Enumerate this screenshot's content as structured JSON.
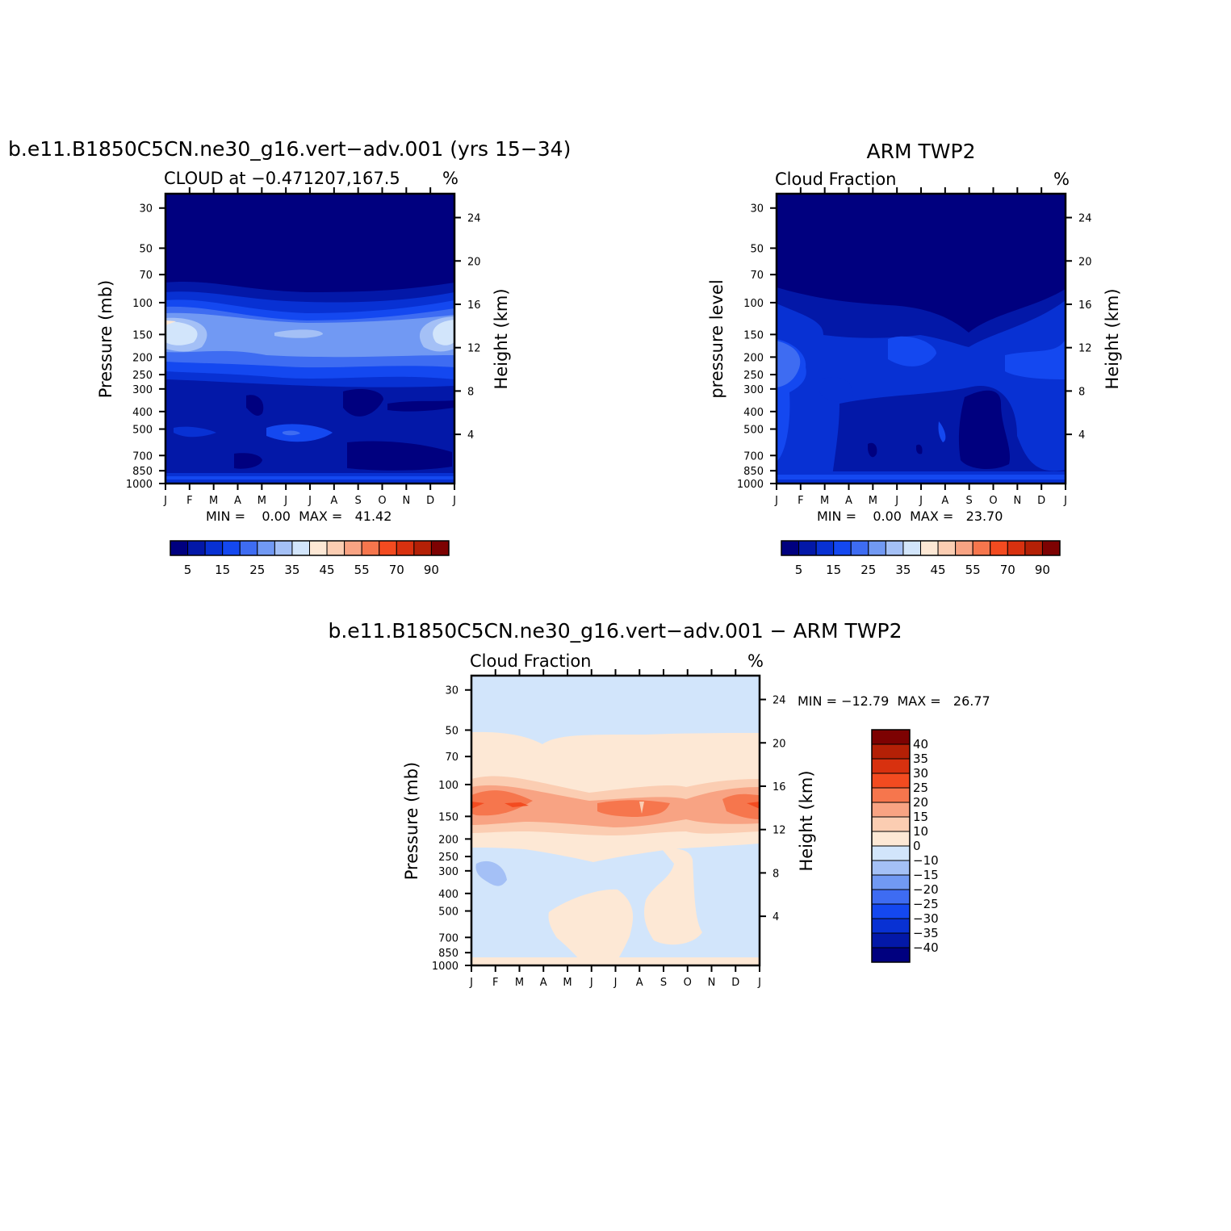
{
  "figure": {
    "panels": [
      {
        "id": "model",
        "title": "b.e11.B1850C5CN.ne30_g16.vert−adv.001 (yrs 15−34)",
        "subtitle_left": "CLOUD at −0.471207,167.5",
        "subtitle_right": "%",
        "ylabel_left": "Pressure (mb)",
        "ylabel_right": "Height (km)",
        "stats": "MIN =    0.00  MAX =   41.42"
      },
      {
        "id": "obs",
        "title": "ARM TWP2",
        "subtitle_left": "Cloud Fraction",
        "subtitle_right": "%",
        "ylabel_left": "pressure level",
        "ylabel_right": "Height (km)",
        "stats": "MIN =    0.00  MAX =   23.70"
      },
      {
        "id": "diff",
        "title": "b.e11.B1850C5CN.ne30_g16.vert−adv.001 − ARM TWP2",
        "subtitle_left": "Cloud Fraction",
        "subtitle_right": "%",
        "ylabel_left": "Pressure (mb)",
        "ylabel_right": "Height (km)",
        "stats": "MIN = −12.79  MAX =   26.77"
      }
    ],
    "colors": {
      "abs_scale": [
        "#00007f",
        "#0318a8",
        "#0831d3",
        "#1448f0",
        "#3e6cf2",
        "#7199f3",
        "#a4c0f6",
        "#d2e5fb",
        "#fde8d5",
        "#fbcdb2",
        "#f8a383",
        "#f6764d",
        "#f34b20",
        "#d8310f",
        "#b42006",
        "#7d0202"
      ],
      "diff_scale": [
        "#00007f",
        "#0318a8",
        "#0831d3",
        "#1448f0",
        "#3e6cf2",
        "#7199f3",
        "#a4c0f6",
        "#d2e5fb",
        "#fde8d5",
        "#fbcdb2",
        "#f8a383",
        "#f6764d",
        "#f34b20",
        "#d8310f",
        "#b42006",
        "#7d0202"
      ]
    }
  },
  "chart_data": [
    {
      "type": "heatmap",
      "title": "b.e11.B1850C5CN.ne30_g16.vert−adv.001 (yrs 15−34)",
      "subtitle": "CLOUD at −0.471207,167.5",
      "units": "%",
      "x_ticks": [
        "J",
        "F",
        "M",
        "A",
        "M",
        "J",
        "J",
        "A",
        "S",
        "O",
        "N",
        "D",
        "J"
      ],
      "y_ticks_left": [
        "30",
        "50",
        "70",
        "100",
        "150",
        "200",
        "250",
        "300",
        "400",
        "500",
        "700",
        "850",
        "1000"
      ],
      "y_ticks_right": [
        "24",
        "20",
        "16",
        "12",
        "8",
        "4"
      ],
      "ylabel": "Pressure (mb)",
      "ylabel_right": "Height (km)",
      "contour_levels": [
        0,
        5,
        10,
        15,
        20,
        25,
        30,
        35,
        40,
        45,
        50,
        55,
        60,
        70,
        80,
        90
      ],
      "colorbar_labels": [
        "5",
        "15",
        "25",
        "35",
        "45",
        "55",
        "70",
        "90"
      ],
      "min": 0.0,
      "max": 41.42,
      "profiles": {
        "30": 0,
        "50": 0,
        "70": 1,
        "100": 12,
        "150": 32,
        "200": 20,
        "250": 12,
        "300": 8,
        "400": 7,
        "500": 9,
        "700": 6,
        "850": 7,
        "1000": 20
      }
    },
    {
      "type": "heatmap",
      "title": "ARM TWP2",
      "subtitle": "Cloud Fraction",
      "units": "%",
      "x_ticks": [
        "J",
        "F",
        "M",
        "A",
        "M",
        "J",
        "J",
        "A",
        "S",
        "O",
        "N",
        "D",
        "J"
      ],
      "y_ticks_left": [
        "30",
        "50",
        "70",
        "100",
        "150",
        "200",
        "250",
        "300",
        "400",
        "500",
        "700",
        "850",
        "1000"
      ],
      "y_ticks_right": [
        "24",
        "20",
        "16",
        "12",
        "8",
        "4"
      ],
      "ylabel": "pressure level",
      "ylabel_right": "Height (km)",
      "contour_levels": [
        0,
        5,
        10,
        15,
        20,
        25,
        30,
        35,
        40,
        45,
        50,
        55,
        60,
        70,
        80,
        90
      ],
      "colorbar_labels": [
        "5",
        "15",
        "25",
        "35",
        "45",
        "55",
        "70",
        "90"
      ],
      "min": 0.0,
      "max": 23.7,
      "profiles": {
        "30": 0,
        "50": 0,
        "70": 0,
        "100": 2,
        "150": 9,
        "200": 14,
        "250": 13,
        "300": 10,
        "400": 9,
        "500": 10,
        "700": 6,
        "850": 9,
        "1000": 12
      }
    },
    {
      "type": "heatmap",
      "title": "b.e11.B1850C5CN.ne30_g16.vert−adv.001 − ARM TWP2",
      "subtitle": "Cloud Fraction",
      "units": "%",
      "x_ticks": [
        "J",
        "F",
        "M",
        "A",
        "M",
        "J",
        "J",
        "A",
        "S",
        "O",
        "N",
        "D",
        "J"
      ],
      "y_ticks_left": [
        "30",
        "50",
        "70",
        "100",
        "150",
        "200",
        "250",
        "300",
        "400",
        "500",
        "700",
        "850",
        "1000"
      ],
      "y_ticks_right": [
        "24",
        "20",
        "16",
        "12",
        "8",
        "4"
      ],
      "ylabel": "Pressure (mb)",
      "ylabel_right": "Height (km)",
      "contour_levels": [
        -40,
        -35,
        -30,
        -25,
        -20,
        -15,
        -10,
        0,
        10,
        15,
        20,
        25,
        30,
        35,
        40
      ],
      "colorbar_labels": [
        "40",
        "35",
        "30",
        "25",
        "20",
        "15",
        "10",
        "0",
        "−10",
        "−15",
        "−20",
        "−25",
        "−30",
        "−35",
        "−40"
      ],
      "min": -12.79,
      "max": 26.77
    }
  ]
}
